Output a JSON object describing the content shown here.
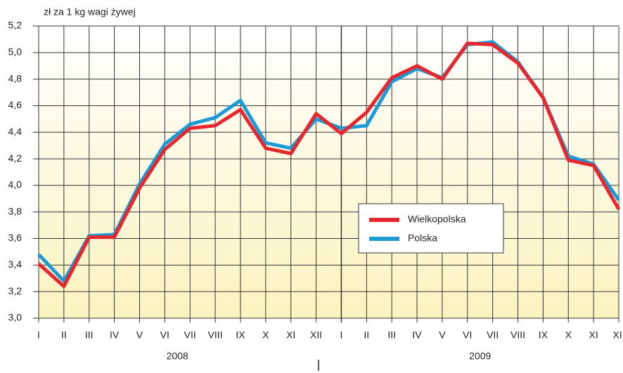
{
  "chart_data": {
    "type": "line",
    "y_axis_label": "zł za 1 kg wagi żywej",
    "categories": [
      "I",
      "II",
      "III",
      "IV",
      "V",
      "VI",
      "VII",
      "VIII",
      "IX",
      "X",
      "XI",
      "XII",
      "I",
      "II",
      "III",
      "IV",
      "V",
      "VI",
      "VII",
      "VIII",
      "IX",
      "X",
      "XI",
      "XII"
    ],
    "years": [
      "2008",
      "2009"
    ],
    "series": [
      {
        "name": "Polska",
        "color": "#1a9ad7",
        "values": [
          3.48,
          3.28,
          3.62,
          3.63,
          4.01,
          4.31,
          4.46,
          4.51,
          4.64,
          4.32,
          4.28,
          4.5,
          4.43,
          4.45,
          4.78,
          4.88,
          4.81,
          5.06,
          5.08,
          4.93,
          4.66,
          4.22,
          4.16,
          3.89
        ]
      },
      {
        "name": "Wielkopolska",
        "color": "#e8262d",
        "values": [
          3.41,
          3.24,
          3.61,
          3.61,
          3.98,
          4.27,
          4.43,
          4.45,
          4.57,
          4.28,
          4.24,
          4.54,
          4.39,
          4.55,
          4.81,
          4.9,
          4.8,
          5.07,
          5.06,
          4.92,
          4.66,
          4.19,
          4.15,
          3.82
        ]
      }
    ],
    "legend_order": [
      1,
      0
    ],
    "ylim": [
      3.0,
      5.2
    ],
    "yticks": [
      {
        "value": 3.0,
        "label": "3,0"
      },
      {
        "value": 3.2,
        "label": "3,2"
      },
      {
        "value": 3.4,
        "label": "3,4"
      },
      {
        "value": 3.6,
        "label": "3,6"
      },
      {
        "value": 3.8,
        "label": "3,8"
      },
      {
        "value": 4.0,
        "label": "4,0"
      },
      {
        "value": 4.2,
        "label": "4,2"
      },
      {
        "value": 4.4,
        "label": "4,4"
      },
      {
        "value": 4.6,
        "label": "4,6"
      },
      {
        "value": 4.8,
        "label": "4,8"
      },
      {
        "value": 5.0,
        "label": "5,0"
      },
      {
        "value": 5.2,
        "label": "5,2"
      }
    ],
    "grid": true
  }
}
